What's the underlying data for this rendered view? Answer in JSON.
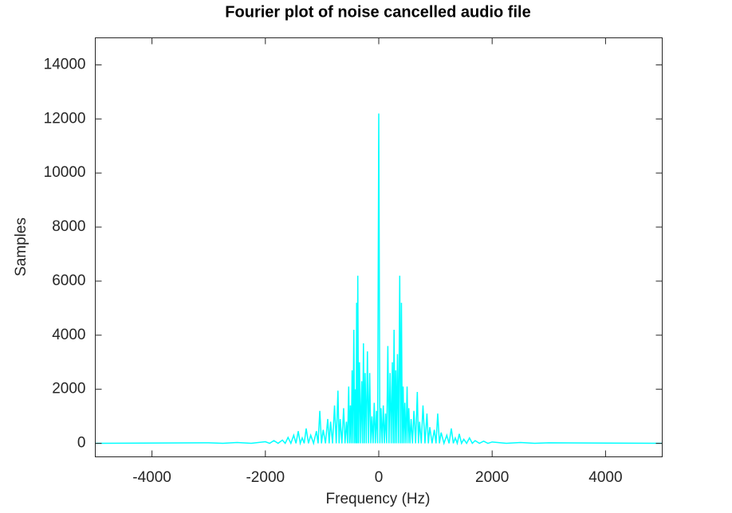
{
  "chart_data": {
    "type": "line",
    "title": "Fourier plot of noise cancelled audio file",
    "x_label": "Frequency (Hz)",
    "y_label": "Samples",
    "color": "#00ffff",
    "xlim": [
      -5000,
      5000
    ],
    "xticks": [
      -4000,
      -2000,
      0,
      2000,
      4000
    ],
    "ylim": [
      -500,
      15000
    ],
    "yticks": [
      0,
      2000,
      4000,
      6000,
      8000,
      10000,
      12000,
      14000
    ],
    "grid": false,
    "x": [
      -5000,
      -3000,
      -2750,
      -2500,
      -2250,
      -2000,
      -1925,
      -1850,
      -1775,
      -1700,
      -1650,
      -1600,
      -1550,
      -1500,
      -1460,
      -1420,
      -1385,
      -1350,
      -1315,
      -1280,
      -1240,
      -1200,
      -1150,
      -1100,
      -1070,
      -1040,
      -1010,
      -980,
      -940,
      -900,
      -875,
      -850,
      -815,
      -780,
      -750,
      -720,
      -700,
      -680,
      -650,
      -620,
      -595,
      -570,
      -550,
      -530,
      -515,
      -500,
      -485,
      -470,
      -455,
      -440,
      -425,
      -410,
      -400,
      -390,
      -380,
      -370,
      -355,
      -340,
      -320,
      -300,
      -285,
      -270,
      -255,
      -240,
      -220,
      -200,
      -180,
      -160,
      -140,
      -120,
      -100,
      -80,
      -60,
      -40,
      -20,
      0,
      20,
      40,
      60,
      80,
      100,
      120,
      140,
      160,
      180,
      200,
      220,
      240,
      255,
      270,
      285,
      300,
      315,
      330,
      350,
      370,
      385,
      400,
      415,
      430,
      445,
      460,
      480,
      500,
      515,
      530,
      550,
      570,
      595,
      620,
      650,
      680,
      700,
      720,
      750,
      780,
      815,
      850,
      875,
      900,
      940,
      980,
      1010,
      1040,
      1070,
      1100,
      1150,
      1200,
      1240,
      1280,
      1315,
      1350,
      1385,
      1420,
      1460,
      1500,
      1550,
      1600,
      1650,
      1700,
      1775,
      1850,
      1925,
      2000,
      2250,
      2500,
      2750,
      3000,
      5000
    ],
    "values": [
      0,
      20,
      0,
      30,
      0,
      60,
      0,
      100,
      0,
      120,
      0,
      220,
      0,
      300,
      0,
      450,
      0,
      200,
      0,
      550,
      0,
      300,
      0,
      450,
      0,
      1200,
      0,
      500,
      0,
      900,
      0,
      800,
      0,
      1400,
      0,
      1950,
      0,
      900,
      0,
      1300,
      0,
      800,
      0,
      2100,
      0,
      1400,
      0,
      2700,
      0,
      4200,
      0,
      2000,
      0,
      5200,
      0,
      6200,
      0,
      3000,
      0,
      2300,
      0,
      3700,
      0,
      2600,
      0,
      3400,
      0,
      2600,
      0,
      1000,
      0,
      1500,
      0,
      1200,
      0,
      12200,
      0,
      1300,
      0,
      1400,
      0,
      1100,
      0,
      3600,
      0,
      2600,
      0,
      3000,
      0,
      4200,
      0,
      2700,
      0,
      3300,
      0,
      6200,
      0,
      5200,
      0,
      2100,
      0,
      1500,
      0,
      2100,
      0,
      1300,
      0,
      900,
      0,
      1200,
      0,
      1900,
      0,
      800,
      0,
      1400,
      0,
      1100,
      0,
      600,
      0,
      500,
      0,
      1100,
      0,
      400,
      0,
      300,
      0,
      550,
      0,
      200,
      0,
      350,
      0,
      150,
      0,
      200,
      0,
      100,
      0,
      80,
      0,
      50,
      0,
      30,
      0,
      20,
      0
    ]
  }
}
